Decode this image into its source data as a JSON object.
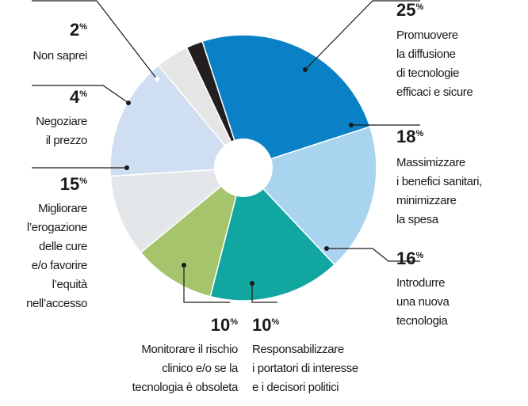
{
  "chart_data": {
    "type": "donut",
    "unit": "%",
    "categories": [
      [
        "Promuovere",
        "la diffusione",
        "di tecnologie",
        "efficaci e sicure"
      ],
      [
        "Massimizzare",
        "i benefici sanitari,",
        "minimizzare",
        "la spesa"
      ],
      [
        "Introdurre",
        "una nuova",
        "tecnologia"
      ],
      [
        "Responsabilizzare",
        "i portatori di interesse",
        "e i decisori politici"
      ],
      [
        "Monitorare il rischio",
        "clinico e/o se la",
        "tecnologia è obsoleta"
      ],
      [
        "Migliorare",
        "l’erogazione",
        "delle cure",
        "e/o favorire",
        "l’equità",
        "nell’accesso"
      ],
      [
        "Negoziare",
        "il prezzo"
      ],
      [
        "Non saprei"
      ]
    ],
    "values": [
      25,
      18,
      16,
      10,
      10,
      15,
      4,
      2
    ],
    "colors": [
      "#0a80c6",
      "#a9d4ef",
      "#12a6a0",
      "#a6c46b",
      "#e3e7ea",
      "#cfdef0",
      "#e5e5e5",
      "#231f20"
    ]
  }
}
